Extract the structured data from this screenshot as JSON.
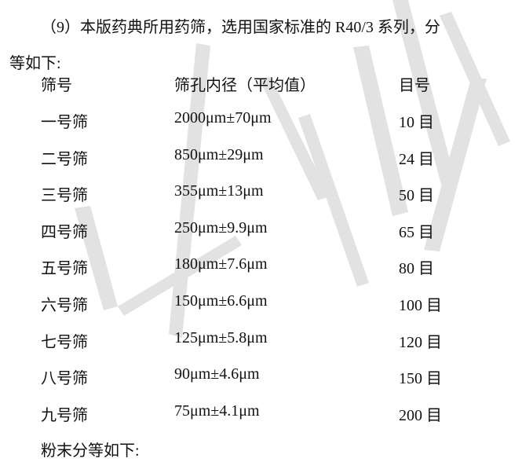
{
  "intro_line1": "（9）本版药典所用药筛，选用国家标准的 R40/3 系列，分",
  "intro_line2": "等如下:",
  "table": {
    "headers": [
      "筛号",
      "筛孔内径（平均值）",
      "目号"
    ],
    "rows": [
      [
        "一号筛",
        "2000μm±70μm",
        "10 目"
      ],
      [
        "二号筛",
        "850μm±29μm",
        "24 目"
      ],
      [
        "三号筛",
        "355μm±13μm",
        "50 目"
      ],
      [
        "四号筛",
        "250μm±9.9μm",
        "65 目"
      ],
      [
        "五号筛",
        "180μm±7.6μm",
        "80 目"
      ],
      [
        "六号筛",
        "150μm±6.6μm",
        "100 目"
      ],
      [
        "七号筛",
        "125μm±5.8μm",
        "120 目"
      ],
      [
        "八号筛",
        "90μm±4.6μm",
        "150 目"
      ],
      [
        "九号筛",
        "75μm±4.1μm",
        "200 目"
      ]
    ]
  },
  "outro": "粉末分等如下:",
  "watermark_color": "#dedede"
}
